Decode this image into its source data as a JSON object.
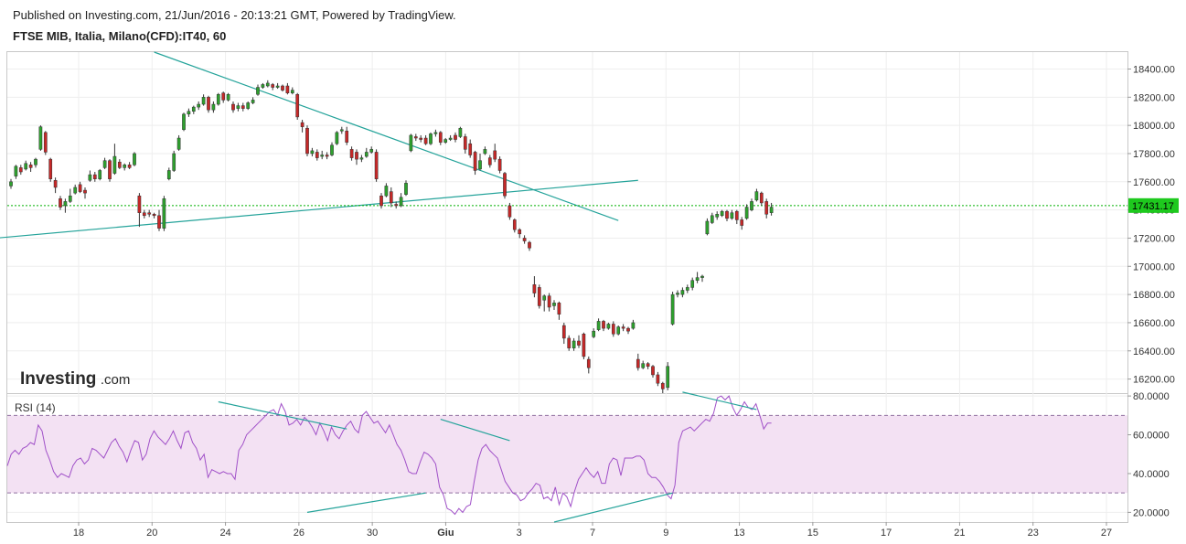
{
  "header": {
    "published": "Published on Investing.com, 21/Jun/2016 - 20:13:21 GMT, Powered by TradingView.",
    "symbol": "FTSE MIB, Italia, Milano(CFD):IT40, 60"
  },
  "logo": {
    "brand": "Investing",
    "suffix": ".com"
  },
  "chart_data": [
    {
      "type": "candlestick",
      "interval": "60",
      "x_ticks": [
        "18",
        "20",
        "24",
        "26",
        "30",
        "Giu",
        "3",
        "7",
        "9",
        "13",
        "15",
        "17",
        "21",
        "23",
        "27"
      ],
      "y_ticks": [
        "18400.00",
        "18200.00",
        "18000.00",
        "17800.00",
        "17600.00",
        "17400.00",
        "17200.00",
        "17000.00",
        "16800.00",
        "16600.00",
        "16400.00",
        "16200.00"
      ],
      "ylim": [
        16100,
        18520
      ],
      "last_price": "17431.17",
      "colors": {
        "up": "#2ea02e",
        "down": "#c62828",
        "trendline": "#24a39a",
        "price_line": "#00b000",
        "last_label_bg": "#1ec91e"
      },
      "trendlines": [
        {
          "from": {
            "bar": -3,
            "price": 17200
          },
          "to": {
            "bar": 127,
            "price": 17610
          }
        },
        {
          "from": {
            "bar": 29,
            "price": 18520
          },
          "to": {
            "bar": 123,
            "price": 17325
          }
        }
      ],
      "candles": [
        [
          17570,
          17600,
          17550,
          17620
        ],
        [
          17640,
          17710,
          17620,
          17720
        ],
        [
          17700,
          17670,
          17650,
          17720
        ],
        [
          17690,
          17730,
          17680,
          17750
        ],
        [
          17720,
          17700,
          17670,
          17740
        ],
        [
          17720,
          17760,
          17700,
          17770
        ],
        [
          17830,
          17990,
          17820,
          18000
        ],
        [
          17950,
          17810,
          17790,
          17960
        ],
        [
          17760,
          17620,
          17600,
          17770
        ],
        [
          17610,
          17560,
          17520,
          17630
        ],
        [
          17480,
          17420,
          17400,
          17500
        ],
        [
          17430,
          17460,
          17380,
          17480
        ],
        [
          17460,
          17500,
          17450,
          17550
        ],
        [
          17520,
          17560,
          17510,
          17580
        ],
        [
          17580,
          17530,
          17520,
          17600
        ],
        [
          17540,
          17520,
          17480,
          17560
        ],
        [
          17610,
          17650,
          17600,
          17680
        ],
        [
          17650,
          17620,
          17600,
          17670
        ],
        [
          17620,
          17680,
          17610,
          17690
        ],
        [
          17700,
          17750,
          17690,
          17770
        ],
        [
          17750,
          17620,
          17600,
          17760
        ],
        [
          17660,
          17780,
          17650,
          17870
        ],
        [
          17740,
          17700,
          17690,
          17760
        ],
        [
          17700,
          17720,
          17680,
          17730
        ],
        [
          17720,
          17700,
          17690,
          17740
        ],
        [
          17720,
          17800,
          17710,
          17810
        ],
        [
          17500,
          17380,
          17280,
          17520
        ],
        [
          17380,
          17360,
          17340,
          17400
        ],
        [
          17380,
          17370,
          17350,
          17400
        ],
        [
          17370,
          17360,
          17340,
          17380
        ],
        [
          17360,
          17270,
          17250,
          17400
        ],
        [
          17270,
          17480,
          17250,
          17500
        ],
        [
          17620,
          17680,
          17610,
          17700
        ],
        [
          17680,
          17800,
          17670,
          17820
        ],
        [
          17830,
          17910,
          17820,
          17930
        ],
        [
          17970,
          18080,
          17960,
          18090
        ],
        [
          18080,
          18100,
          18060,
          18120
        ],
        [
          18100,
          18130,
          18080,
          18140
        ],
        [
          18130,
          18150,
          18110,
          18170
        ],
        [
          18150,
          18200,
          18140,
          18220
        ],
        [
          18200,
          18110,
          18090,
          18210
        ],
        [
          18110,
          18150,
          18090,
          18170
        ],
        [
          18150,
          18220,
          18140,
          18230
        ],
        [
          18230,
          18180,
          18160,
          18240
        ],
        [
          18180,
          18220,
          18170,
          18230
        ],
        [
          18150,
          18110,
          18090,
          18170
        ],
        [
          18120,
          18140,
          18100,
          18160
        ],
        [
          18140,
          18120,
          18100,
          18160
        ],
        [
          18120,
          18160,
          18110,
          18170
        ],
        [
          18160,
          18180,
          18150,
          18200
        ],
        [
          18220,
          18270,
          18210,
          18290
        ],
        [
          18270,
          18290,
          18260,
          18300
        ],
        [
          18280,
          18300,
          18270,
          18320
        ],
        [
          18290,
          18270,
          18250,
          18300
        ],
        [
          18270,
          18280,
          18260,
          18300
        ],
        [
          18280,
          18250,
          18240,
          18290
        ],
        [
          18280,
          18230,
          18220,
          18300
        ],
        [
          18230,
          18250,
          18220,
          18270
        ],
        [
          18220,
          18060,
          18040,
          18230
        ],
        [
          18020,
          17990,
          17950,
          18040
        ],
        [
          17980,
          17800,
          17780,
          18000
        ],
        [
          17800,
          17820,
          17780,
          17840
        ],
        [
          17810,
          17770,
          17750,
          17830
        ],
        [
          17780,
          17790,
          17760,
          17820
        ],
        [
          17790,
          17780,
          17760,
          17810
        ],
        [
          17790,
          17860,
          17780,
          17880
        ],
        [
          17870,
          17950,
          17860,
          17960
        ],
        [
          17960,
          17970,
          17940,
          17990
        ],
        [
          17960,
          17880,
          17860,
          17990
        ],
        [
          17830,
          17770,
          17750,
          17850
        ],
        [
          17810,
          17760,
          17720,
          17830
        ],
        [
          17760,
          17770,
          17740,
          17790
        ],
        [
          17780,
          17810,
          17770,
          17840
        ],
        [
          17810,
          17830,
          17800,
          17850
        ],
        [
          17810,
          17620,
          17600,
          17830
        ],
        [
          17500,
          17430,
          17410,
          17520
        ],
        [
          17500,
          17570,
          17490,
          17590
        ],
        [
          17530,
          17450,
          17420,
          17560
        ],
        [
          17440,
          17430,
          17410,
          17460
        ],
        [
          17430,
          17490,
          17420,
          17520
        ],
        [
          17510,
          17590,
          17500,
          17610
        ],
        [
          17820,
          17930,
          17810,
          17940
        ],
        [
          17920,
          17910,
          17890,
          17940
        ],
        [
          17910,
          17900,
          17880,
          17930
        ],
        [
          17910,
          17870,
          17860,
          17930
        ],
        [
          17870,
          17940,
          17860,
          17950
        ],
        [
          17940,
          17950,
          17920,
          17970
        ],
        [
          17950,
          17880,
          17860,
          17960
        ],
        [
          17880,
          17900,
          17870,
          17910
        ],
        [
          17900,
          17910,
          17890,
          17930
        ],
        [
          17930,
          17900,
          17880,
          17950
        ],
        [
          17920,
          17980,
          17910,
          17990
        ],
        [
          17920,
          17830,
          17800,
          17940
        ],
        [
          17870,
          17790,
          17770,
          17900
        ],
        [
          17810,
          17680,
          17650,
          17820
        ],
        [
          17690,
          17750,
          17680,
          17800
        ],
        [
          17800,
          17830,
          17790,
          17850
        ],
        [
          17770,
          17720,
          17700,
          17790
        ],
        [
          17820,
          17760,
          17740,
          17870
        ],
        [
          17760,
          17680,
          17660,
          17780
        ],
        [
          17660,
          17500,
          17480,
          17670
        ],
        [
          17430,
          17350,
          17330,
          17450
        ],
        [
          17330,
          17260,
          17240,
          17340
        ],
        [
          17260,
          17230,
          17200,
          17270
        ],
        [
          17200,
          17180,
          17160,
          17220
        ],
        [
          17170,
          17130,
          17110,
          17180
        ],
        [
          16870,
          16810,
          16780,
          16930
        ],
        [
          16850,
          16720,
          16700,
          16870
        ],
        [
          16760,
          16790,
          16680,
          16800
        ],
        [
          16790,
          16710,
          16680,
          16810
        ],
        [
          16720,
          16740,
          16690,
          16760
        ],
        [
          16740,
          16660,
          16620,
          16750
        ],
        [
          16580,
          16490,
          16450,
          16600
        ],
        [
          16490,
          16420,
          16400,
          16510
        ],
        [
          16420,
          16470,
          16400,
          16490
        ],
        [
          16470,
          16440,
          16420,
          16510
        ],
        [
          16520,
          16360,
          16340,
          16530
        ],
        [
          16340,
          16280,
          16240,
          16360
        ],
        [
          16500,
          16540,
          16490,
          16560
        ],
        [
          16550,
          16610,
          16540,
          16630
        ],
        [
          16610,
          16560,
          16540,
          16620
        ],
        [
          16560,
          16590,
          16550,
          16600
        ],
        [
          16590,
          16520,
          16500,
          16610
        ],
        [
          16520,
          16570,
          16510,
          16580
        ],
        [
          16570,
          16560,
          16540,
          16590
        ],
        [
          16560,
          16540,
          16520,
          16570
        ],
        [
          16560,
          16600,
          16550,
          16620
        ],
        [
          16340,
          16280,
          16260,
          16380
        ],
        [
          16280,
          16310,
          16270,
          16330
        ],
        [
          16310,
          16290,
          16270,
          16320
        ],
        [
          16290,
          16230,
          16210,
          16300
        ],
        [
          16230,
          16170,
          16150,
          16250
        ],
        [
          16170,
          16130,
          16100,
          16180
        ],
        [
          16140,
          16290,
          16120,
          16320
        ],
        [
          16590,
          16800,
          16580,
          16820
        ],
        [
          16800,
          16810,
          16780,
          16830
        ],
        [
          16800,
          16830,
          16780,
          16850
        ],
        [
          16830,
          16850,
          16810,
          16870
        ],
        [
          16850,
          16900,
          16830,
          16920
        ],
        [
          16900,
          16920,
          16880,
          16960
        ],
        [
          16920,
          16930,
          16890,
          16940
        ],
        [
          17230,
          17320,
          17220,
          17340
        ],
        [
          17310,
          17360,
          17300,
          17380
        ],
        [
          17350,
          17370,
          17330,
          17390
        ],
        [
          17360,
          17390,
          17350,
          17400
        ],
        [
          17390,
          17340,
          17320,
          17400
        ],
        [
          17340,
          17380,
          17330,
          17400
        ],
        [
          17390,
          17330,
          17300,
          17400
        ],
        [
          17330,
          17290,
          17260,
          17350
        ],
        [
          17340,
          17420,
          17330,
          17440
        ],
        [
          17400,
          17460,
          17390,
          17480
        ],
        [
          17470,
          17530,
          17460,
          17550
        ],
        [
          17520,
          17450,
          17430,
          17530
        ],
        [
          17460,
          17370,
          17340,
          17480
        ],
        [
          17380,
          17420,
          17360,
          17450
        ]
      ]
    },
    {
      "type": "line",
      "title": "RSI (14)",
      "y_ticks": [
        "80.0000",
        "60.0000",
        "40.0000",
        "20.0000"
      ],
      "ylim": [
        15,
        81
      ],
      "bands": [
        30,
        70
      ],
      "colors": {
        "line": "#a050c8",
        "band_fill": "#f3e1f3",
        "band_border": "#9070a0",
        "trendline": "#24a39a"
      },
      "trendlines": [
        {
          "from": {
            "bar": 42,
            "value": 77
          },
          "to": {
            "bar": 68,
            "value": 63
          }
        },
        {
          "from": {
            "bar": 60,
            "value": 20
          },
          "to": {
            "bar": 84,
            "value": 30
          }
        },
        {
          "from": {
            "bar": 87,
            "value": 68
          },
          "to": {
            "bar": 101,
            "value": 57
          }
        },
        {
          "from": {
            "bar": 110,
            "value": 15
          },
          "to": {
            "bar": 134,
            "value": 30
          }
        },
        {
          "from": {
            "bar": 136,
            "value": 82
          },
          "to": {
            "bar": 151,
            "value": 73
          }
        }
      ],
      "values": [
        44,
        50,
        52,
        50,
        53,
        54,
        56,
        55,
        65,
        62,
        52,
        47,
        41,
        38,
        40,
        39,
        38,
        44,
        47,
        48,
        45,
        47,
        53,
        52,
        50,
        48,
        52,
        56,
        58,
        54,
        51,
        46,
        52,
        57,
        56,
        47,
        50,
        58,
        62,
        59,
        57,
        55,
        58,
        62,
        57,
        53,
        61,
        62,
        56,
        53,
        47,
        50,
        38,
        42,
        41,
        40,
        41,
        40,
        40,
        37,
        52,
        55,
        60,
        62,
        64,
        66,
        68,
        70,
        72,
        73,
        70,
        76,
        72,
        65,
        66,
        68,
        65,
        69,
        67,
        64,
        60,
        66,
        62,
        57,
        64,
        60,
        58,
        62,
        65,
        67,
        63,
        61,
        70,
        72,
        69,
        66,
        67,
        64,
        61,
        65,
        60,
        55,
        52,
        47,
        41,
        40,
        40,
        46,
        51,
        50,
        48,
        45,
        33,
        29,
        22,
        21,
        19,
        22,
        20,
        23,
        24,
        36,
        47,
        53,
        55,
        52,
        50,
        48,
        42,
        36,
        33,
        30,
        29,
        26,
        27,
        30,
        32,
        35,
        34,
        27,
        28,
        26,
        33,
        24,
        30,
        28,
        23,
        31,
        37,
        40,
        43,
        40,
        38,
        41,
        35,
        35,
        45,
        48,
        47,
        39,
        48,
        48,
        48,
        49,
        49,
        47,
        40,
        38,
        38,
        36,
        33,
        29,
        27,
        34,
        56,
        62,
        63,
        64,
        62,
        64,
        66,
        68,
        67,
        71,
        79,
        80,
        78,
        80,
        74,
        70,
        73,
        77,
        74,
        73,
        76,
        70,
        63,
        66,
        66
      ]
    }
  ]
}
